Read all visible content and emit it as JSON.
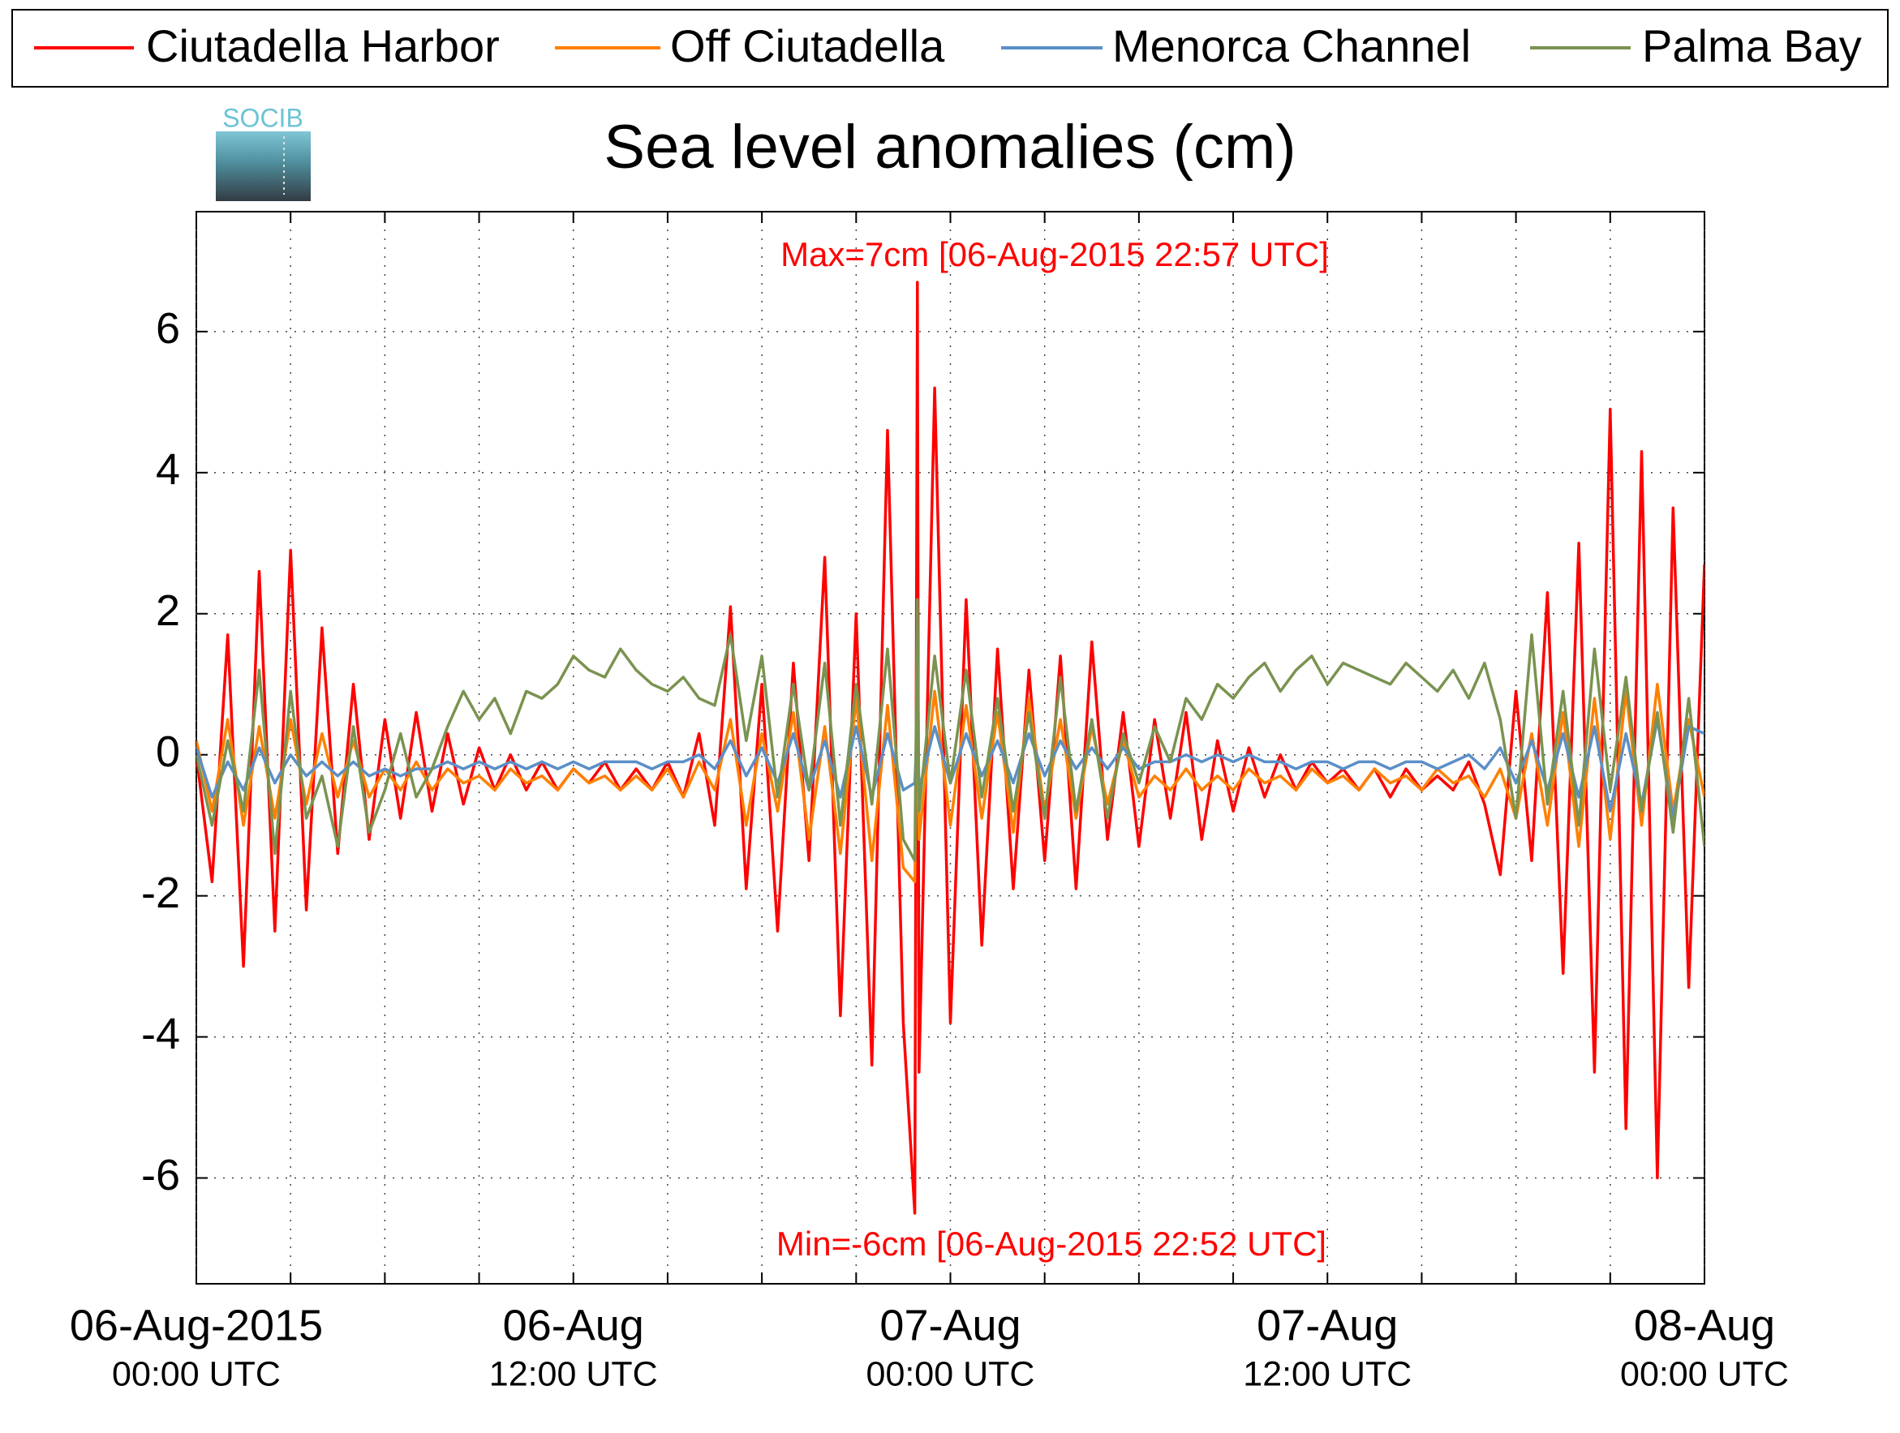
{
  "chart_data": {
    "type": "line",
    "title": "Sea level anomalies (cm)",
    "logo_text": "SOCIB",
    "annotations": [
      "Max=7cm [06-Aug-2015 22:57 UTC]",
      "Min=-6cm [06-Aug-2015 22:52 UTC]"
    ],
    "annotation_color": "#ff0000",
    "x": [
      "2015-08-06T00:00",
      "2015-08-06T00:30",
      "2015-08-06T01:00",
      "2015-08-06T01:30",
      "2015-08-06T02:00",
      "2015-08-06T02:30",
      "2015-08-06T03:00",
      "2015-08-06T03:30",
      "2015-08-06T04:00",
      "2015-08-06T04:30",
      "2015-08-06T05:00",
      "2015-08-06T05:30",
      "2015-08-06T06:00",
      "2015-08-06T06:30",
      "2015-08-06T07:00",
      "2015-08-06T07:30",
      "2015-08-06T08:00",
      "2015-08-06T08:30",
      "2015-08-06T09:00",
      "2015-08-06T09:30",
      "2015-08-06T10:00",
      "2015-08-06T10:30",
      "2015-08-06T11:00",
      "2015-08-06T11:30",
      "2015-08-06T12:00",
      "2015-08-06T12:30",
      "2015-08-06T13:00",
      "2015-08-06T13:30",
      "2015-08-06T14:00",
      "2015-08-06T14:30",
      "2015-08-06T15:00",
      "2015-08-06T15:30",
      "2015-08-06T16:00",
      "2015-08-06T16:30",
      "2015-08-06T17:00",
      "2015-08-06T17:30",
      "2015-08-06T18:00",
      "2015-08-06T18:30",
      "2015-08-06T19:00",
      "2015-08-06T19:30",
      "2015-08-06T20:00",
      "2015-08-06T20:30",
      "2015-08-06T21:00",
      "2015-08-06T21:30",
      "2015-08-06T22:00",
      "2015-08-06T22:30",
      "2015-08-06T22:52",
      "2015-08-06T22:57",
      "2015-08-06T23:00",
      "2015-08-06T23:30",
      "2015-08-07T00:00",
      "2015-08-07T00:30",
      "2015-08-07T01:00",
      "2015-08-07T01:30",
      "2015-08-07T02:00",
      "2015-08-07T02:30",
      "2015-08-07T03:00",
      "2015-08-07T03:30",
      "2015-08-07T04:00",
      "2015-08-07T04:30",
      "2015-08-07T05:00",
      "2015-08-07T05:30",
      "2015-08-07T06:00",
      "2015-08-07T06:30",
      "2015-08-07T07:00",
      "2015-08-07T07:30",
      "2015-08-07T08:00",
      "2015-08-07T08:30",
      "2015-08-07T09:00",
      "2015-08-07T09:30",
      "2015-08-07T10:00",
      "2015-08-07T10:30",
      "2015-08-07T11:00",
      "2015-08-07T11:30",
      "2015-08-07T12:00",
      "2015-08-07T12:30",
      "2015-08-07T13:00",
      "2015-08-07T13:30",
      "2015-08-07T14:00",
      "2015-08-07T14:30",
      "2015-08-07T15:00",
      "2015-08-07T15:30",
      "2015-08-07T16:00",
      "2015-08-07T16:30",
      "2015-08-07T17:00",
      "2015-08-07T17:30",
      "2015-08-07T18:00",
      "2015-08-07T18:30",
      "2015-08-07T19:00",
      "2015-08-07T19:30",
      "2015-08-07T20:00",
      "2015-08-07T20:30",
      "2015-08-07T21:00",
      "2015-08-07T21:30",
      "2015-08-07T22:00",
      "2015-08-07T22:30",
      "2015-08-07T23:00",
      "2015-08-07T23:30",
      "2015-08-08T00:00"
    ],
    "series": [
      {
        "name": "Ciutadella Harbor",
        "color": "#ff0000",
        "values": [
          0,
          -1.8,
          1.7,
          -3.0,
          2.6,
          -2.5,
          2.9,
          -2.2,
          1.8,
          -1.4,
          1.0,
          -1.2,
          0.5,
          -0.9,
          0.6,
          -0.8,
          0.3,
          -0.7,
          0.1,
          -0.5,
          0,
          -0.5,
          -0.1,
          -0.5,
          -0.2,
          -0.4,
          -0.1,
          -0.5,
          -0.2,
          -0.5,
          -0.1,
          -0.6,
          0.3,
          -1.0,
          2.1,
          -1.9,
          1.0,
          -2.5,
          1.3,
          -1.5,
          2.8,
          -3.7,
          2.0,
          -4.4,
          4.6,
          -3.8,
          -6.5,
          6.7,
          -4.5,
          5.2,
          -3.8,
          2.2,
          -2.7,
          1.5,
          -1.9,
          1.2,
          -1.5,
          1.4,
          -1.9,
          1.6,
          -1.2,
          0.6,
          -1.3,
          0.5,
          -0.9,
          0.6,
          -1.2,
          0.2,
          -0.8,
          0.1,
          -0.6,
          0,
          -0.5,
          -0.1,
          -0.4,
          -0.2,
          -0.5,
          -0.2,
          -0.6,
          -0.2,
          -0.5,
          -0.3,
          -0.5,
          -0.1,
          -0.7,
          -1.7,
          0.9,
          -1.5,
          2.3,
          -3.1,
          3.0,
          -4.5,
          4.9,
          -5.3,
          4.3,
          -6.0,
          3.5,
          -3.3,
          2.7
        ]
      },
      {
        "name": "Off Ciutadella",
        "color": "#ff8000",
        "values": [
          0.2,
          -0.8,
          0.5,
          -1.0,
          0.4,
          -0.9,
          0.5,
          -0.7,
          0.3,
          -0.6,
          0.2,
          -0.6,
          -0.2,
          -0.5,
          -0.1,
          -0.5,
          -0.2,
          -0.4,
          -0.3,
          -0.5,
          -0.2,
          -0.4,
          -0.3,
          -0.5,
          -0.2,
          -0.4,
          -0.3,
          -0.5,
          -0.3,
          -0.5,
          -0.2,
          -0.6,
          -0.1,
          -0.5,
          0.5,
          -1.0,
          0.3,
          -0.8,
          0.6,
          -1.2,
          0.4,
          -1.4,
          0.8,
          -1.5,
          0.7,
          -1.6,
          -1.8,
          1.0,
          -1.2,
          0.9,
          -1.0,
          0.7,
          -0.9,
          0.6,
          -1.1,
          0.8,
          -0.8,
          0.5,
          -0.9,
          0.4,
          -0.7,
          0.2,
          -0.6,
          -0.3,
          -0.5,
          -0.2,
          -0.5,
          -0.3,
          -0.5,
          -0.2,
          -0.4,
          -0.3,
          -0.5,
          -0.2,
          -0.4,
          -0.3,
          -0.5,
          -0.2,
          -0.4,
          -0.3,
          -0.5,
          -0.2,
          -0.4,
          -0.3,
          -0.6,
          -0.2,
          -0.9,
          0.3,
          -1.0,
          0.6,
          -1.3,
          0.8,
          -1.2,
          0.9,
          -1.0,
          1.0,
          -0.8,
          0.5,
          -0.6
        ]
      },
      {
        "name": "Menorca Channel",
        "color": "#5b8fc7",
        "values": [
          0.1,
          -0.6,
          -0.1,
          -0.5,
          0.1,
          -0.4,
          0,
          -0.3,
          -0.1,
          -0.3,
          -0.1,
          -0.3,
          -0.2,
          -0.3,
          -0.2,
          -0.2,
          -0.1,
          -0.2,
          -0.1,
          -0.2,
          -0.1,
          -0.2,
          -0.1,
          -0.2,
          -0.1,
          -0.2,
          -0.1,
          -0.1,
          -0.1,
          -0.2,
          -0.1,
          -0.1,
          0,
          -0.2,
          0.2,
          -0.3,
          0.1,
          -0.4,
          0.3,
          -0.5,
          0.2,
          -0.6,
          0.4,
          -0.6,
          0.3,
          -0.5,
          -0.4,
          0.5,
          -0.5,
          0.4,
          -0.4,
          0.3,
          -0.3,
          0.2,
          -0.4,
          0.3,
          -0.3,
          0.2,
          -0.2,
          0.1,
          -0.2,
          0.1,
          -0.2,
          -0.1,
          -0.1,
          0,
          -0.1,
          0,
          -0.1,
          0,
          -0.1,
          -0.1,
          -0.2,
          -0.1,
          -0.1,
          -0.2,
          -0.1,
          -0.1,
          -0.2,
          -0.1,
          -0.1,
          -0.2,
          -0.1,
          0,
          -0.2,
          0.1,
          -0.4,
          0.2,
          -0.5,
          0.3,
          -0.6,
          0.4,
          -0.8,
          0.3,
          -0.7,
          0.5,
          -0.9,
          0.4,
          0.3
        ]
      },
      {
        "name": "Palma Bay",
        "color": "#7a9350",
        "values": [
          0,
          -1.0,
          0.2,
          -0.8,
          1.2,
          -1.4,
          0.9,
          -0.9,
          -0.3,
          -1.3,
          0.4,
          -1.1,
          -0.5,
          0.3,
          -0.6,
          -0.2,
          0.4,
          0.9,
          0.5,
          0.8,
          0.3,
          0.9,
          0.8,
          1.0,
          1.4,
          1.2,
          1.1,
          1.5,
          1.2,
          1.0,
          0.9,
          1.1,
          0.8,
          0.7,
          1.7,
          0.2,
          1.4,
          -0.6,
          1.0,
          -0.5,
          1.3,
          -1.0,
          1.0,
          -0.7,
          1.5,
          -1.2,
          -1.5,
          2.2,
          -0.8,
          1.4,
          -0.4,
          1.2,
          -0.6,
          0.8,
          -0.8,
          0.6,
          -0.9,
          1.1,
          -0.8,
          0.5,
          -0.9,
          0.3,
          -0.4,
          0.4,
          -0.1,
          0.8,
          0.5,
          1.0,
          0.8,
          1.1,
          1.3,
          0.9,
          1.2,
          1.4,
          1.0,
          1.3,
          1.2,
          1.1,
          1.0,
          1.3,
          1.1,
          0.9,
          1.2,
          0.8,
          1.3,
          0.5,
          -0.9,
          1.7,
          -0.7,
          0.9,
          -1.0,
          1.5,
          -0.5,
          1.1,
          -0.8,
          0.6,
          -1.1,
          0.8,
          -1.3
        ]
      }
    ],
    "xlim": [
      "2015-08-06T00:00",
      "2015-08-08T00:00"
    ],
    "xticks": [
      {
        "value": "2015-08-06T00:00",
        "label": "06-Aug-2015",
        "sublabel": "00:00 UTC"
      },
      {
        "value": "2015-08-06T12:00",
        "label": "06-Aug",
        "sublabel": "12:00 UTC"
      },
      {
        "value": "2015-08-07T00:00",
        "label": "07-Aug",
        "sublabel": "00:00 UTC"
      },
      {
        "value": "2015-08-07T12:00",
        "label": "07-Aug",
        "sublabel": "12:00 UTC"
      },
      {
        "value": "2015-08-08T00:00",
        "label": "08-Aug",
        "sublabel": "00:00 UTC"
      }
    ],
    "xminorticks": [
      "2015-08-06T03:00",
      "2015-08-06T06:00",
      "2015-08-06T09:00",
      "2015-08-06T15:00",
      "2015-08-06T18:00",
      "2015-08-06T21:00",
      "2015-08-07T03:00",
      "2015-08-07T06:00",
      "2015-08-07T09:00",
      "2015-08-07T15:00",
      "2015-08-07T18:00",
      "2015-08-07T21:00"
    ],
    "ylim": [
      -7.5,
      7.7
    ],
    "yticks": [
      -6,
      -4,
      -2,
      0,
      2,
      4,
      6
    ],
    "grid": true,
    "legend": "top"
  }
}
